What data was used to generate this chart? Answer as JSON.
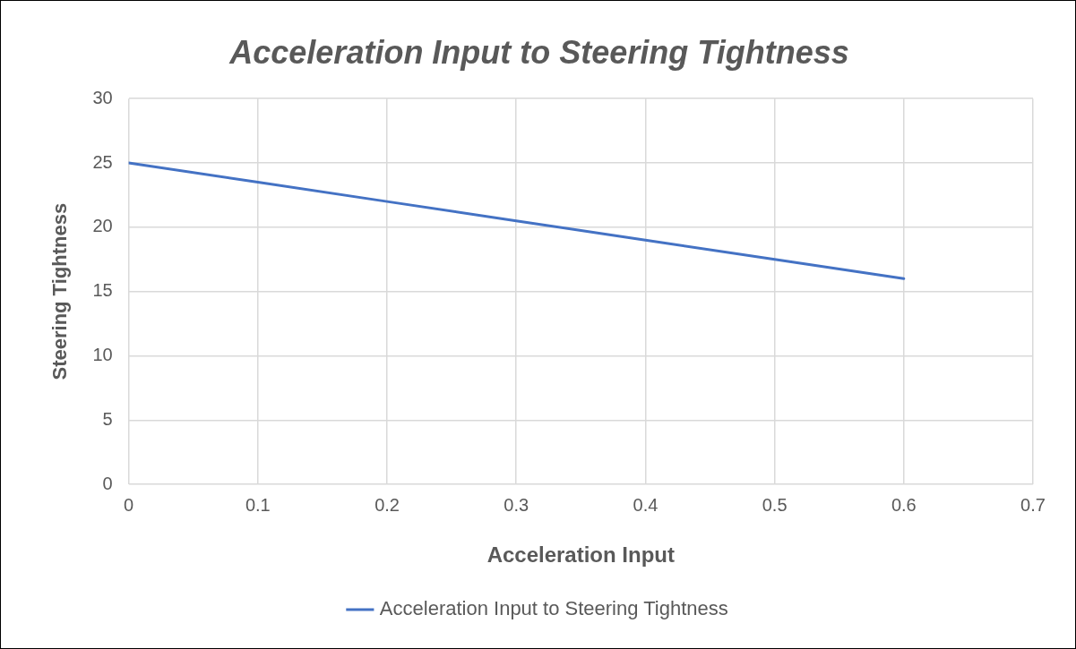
{
  "chart_data": {
    "type": "line",
    "title": "Acceleration Input to Steering Tightness",
    "xlabel": "Acceleration Input",
    "ylabel": "Steering Tightness",
    "x": [
      0,
      0.1,
      0.2,
      0.3,
      0.4,
      0.5,
      0.6
    ],
    "series": [
      {
        "name": "Acceleration Input to Steering Tightness",
        "color": "#4472c4",
        "values": [
          25,
          23.5,
          22,
          20.5,
          19,
          17.5,
          16
        ]
      }
    ],
    "xlim": [
      0,
      0.7
    ],
    "xticks": [
      0,
      0.1,
      0.2,
      0.3,
      0.4,
      0.5,
      0.6,
      0.7
    ],
    "ylim": [
      0,
      30
    ],
    "yticks": [
      0,
      5,
      10,
      15,
      20,
      25,
      30
    ],
    "grid": true,
    "legend": "bottom",
    "marker": "none",
    "line_style": "solid"
  }
}
